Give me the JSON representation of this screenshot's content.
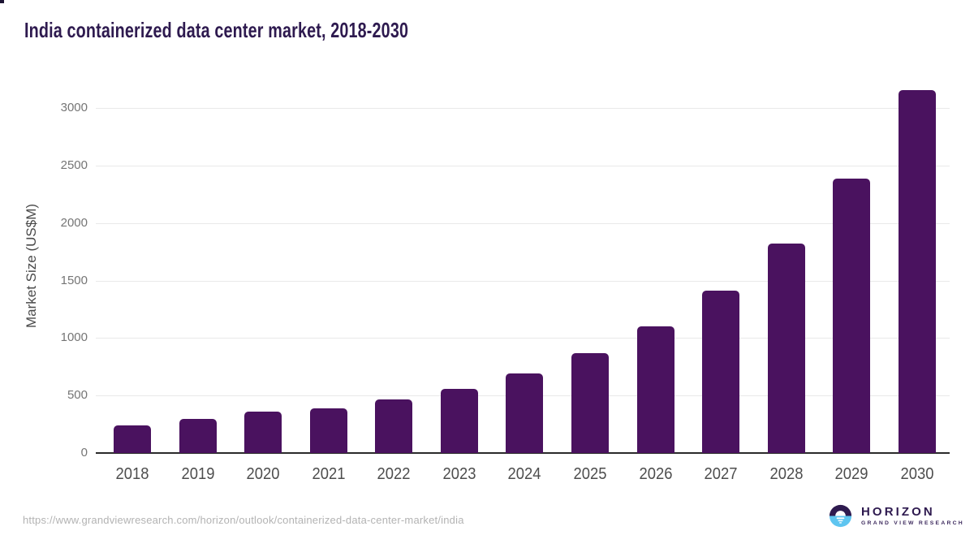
{
  "page": {
    "title": "India containerized data center market, 2018-2030",
    "source_url": "https://www.grandviewresearch.com/horizon/outlook/containerized-data-center-market/india"
  },
  "chart_data": {
    "type": "bar",
    "title": "India containerized data center market, 2018-2030",
    "categories": [
      "2018",
      "2019",
      "2020",
      "2021",
      "2022",
      "2023",
      "2024",
      "2025",
      "2026",
      "2027",
      "2028",
      "2029",
      "2030"
    ],
    "values": [
      240,
      295,
      360,
      390,
      465,
      560,
      695,
      870,
      1100,
      1410,
      1820,
      2385,
      3160
    ],
    "xlabel": "",
    "ylabel": "Market Size (US$M)",
    "ylim": [
      0,
      3200
    ],
    "yticks": [
      0,
      500,
      1000,
      1500,
      2000,
      2500,
      3000
    ],
    "grid": "horizontal-only",
    "legend": "none",
    "bar_color": "#4a125f"
  },
  "logo": {
    "name": "HORIZON",
    "subtitle": "GRAND VIEW RESEARCH"
  },
  "colors": {
    "title": "#2e1a4f",
    "bar": "#4a125f",
    "axis_text": "#4d4d4d",
    "tick_text": "#757575",
    "gridline": "#e9e9e9",
    "baseline": "#2b2b2b",
    "url_text": "#b3b3b3",
    "logo_purple": "#2e1a4f",
    "logo_blue": "#5ec5f0"
  }
}
